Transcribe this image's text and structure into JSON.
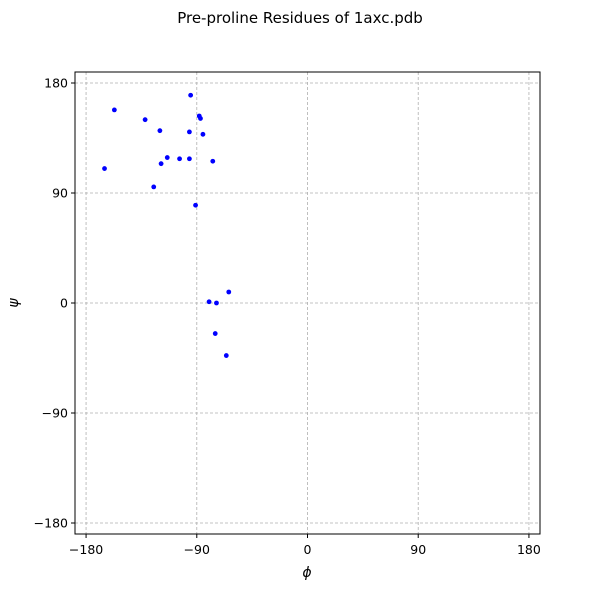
{
  "chart_data": {
    "type": "scatter",
    "title": "Pre-proline Residues of 1axc.pdb",
    "xlabel": "ϕ",
    "ylabel": "ψ",
    "xlim": [
      -189,
      189
    ],
    "ylim": [
      -189,
      189
    ],
    "xticks": [
      -180,
      -90,
      0,
      90,
      180
    ],
    "yticks": [
      -180,
      -90,
      0,
      90,
      180
    ],
    "xtick_labels": [
      "−180",
      "−90",
      "0",
      "90",
      "180"
    ],
    "ytick_labels": [
      "−180",
      "−90",
      "0",
      "90",
      "180"
    ],
    "grid": true,
    "marker_color": "#0000ff",
    "points": [
      {
        "x": -157,
        "y": 158
      },
      {
        "x": -95,
        "y": 170
      },
      {
        "x": -132,
        "y": 150
      },
      {
        "x": -120,
        "y": 141
      },
      {
        "x": -88,
        "y": 153
      },
      {
        "x": -87,
        "y": 151
      },
      {
        "x": -96,
        "y": 140
      },
      {
        "x": -85,
        "y": 138
      },
      {
        "x": -114,
        "y": 119
      },
      {
        "x": -104,
        "y": 118
      },
      {
        "x": -96,
        "y": 118
      },
      {
        "x": -77,
        "y": 116
      },
      {
        "x": -119,
        "y": 114
      },
      {
        "x": -165,
        "y": 110
      },
      {
        "x": -125,
        "y": 95
      },
      {
        "x": -91,
        "y": 80
      },
      {
        "x": -64,
        "y": 9
      },
      {
        "x": -80,
        "y": 1
      },
      {
        "x": -74,
        "y": 0
      },
      {
        "x": -75,
        "y": -25
      },
      {
        "x": -66,
        "y": -43
      }
    ]
  }
}
